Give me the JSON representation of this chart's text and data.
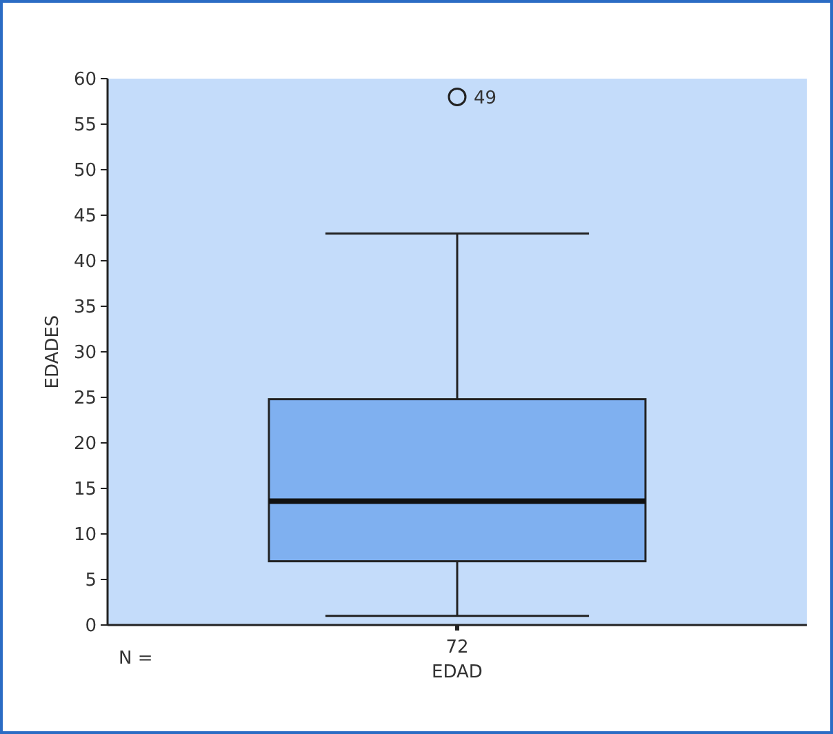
{
  "chart_data": {
    "type": "box",
    "categories": [
      "72"
    ],
    "xlabel": "EDAD",
    "ylabel": "EDADES",
    "color": "#7fb0f0",
    "boxes": [
      {
        "low": 1,
        "q1": 7,
        "median": 13.6,
        "q3": 24.8,
        "high": 43,
        "outliers": [
          58
        ]
      }
    ],
    "ylim": [
      0,
      60
    ],
    "yticks": [
      0,
      5,
      10,
      15,
      20,
      25,
      30,
      35,
      40,
      45,
      50,
      55,
      60
    ],
    "grid": false,
    "annotations": [
      "49",
      "N ="
    ]
  }
}
